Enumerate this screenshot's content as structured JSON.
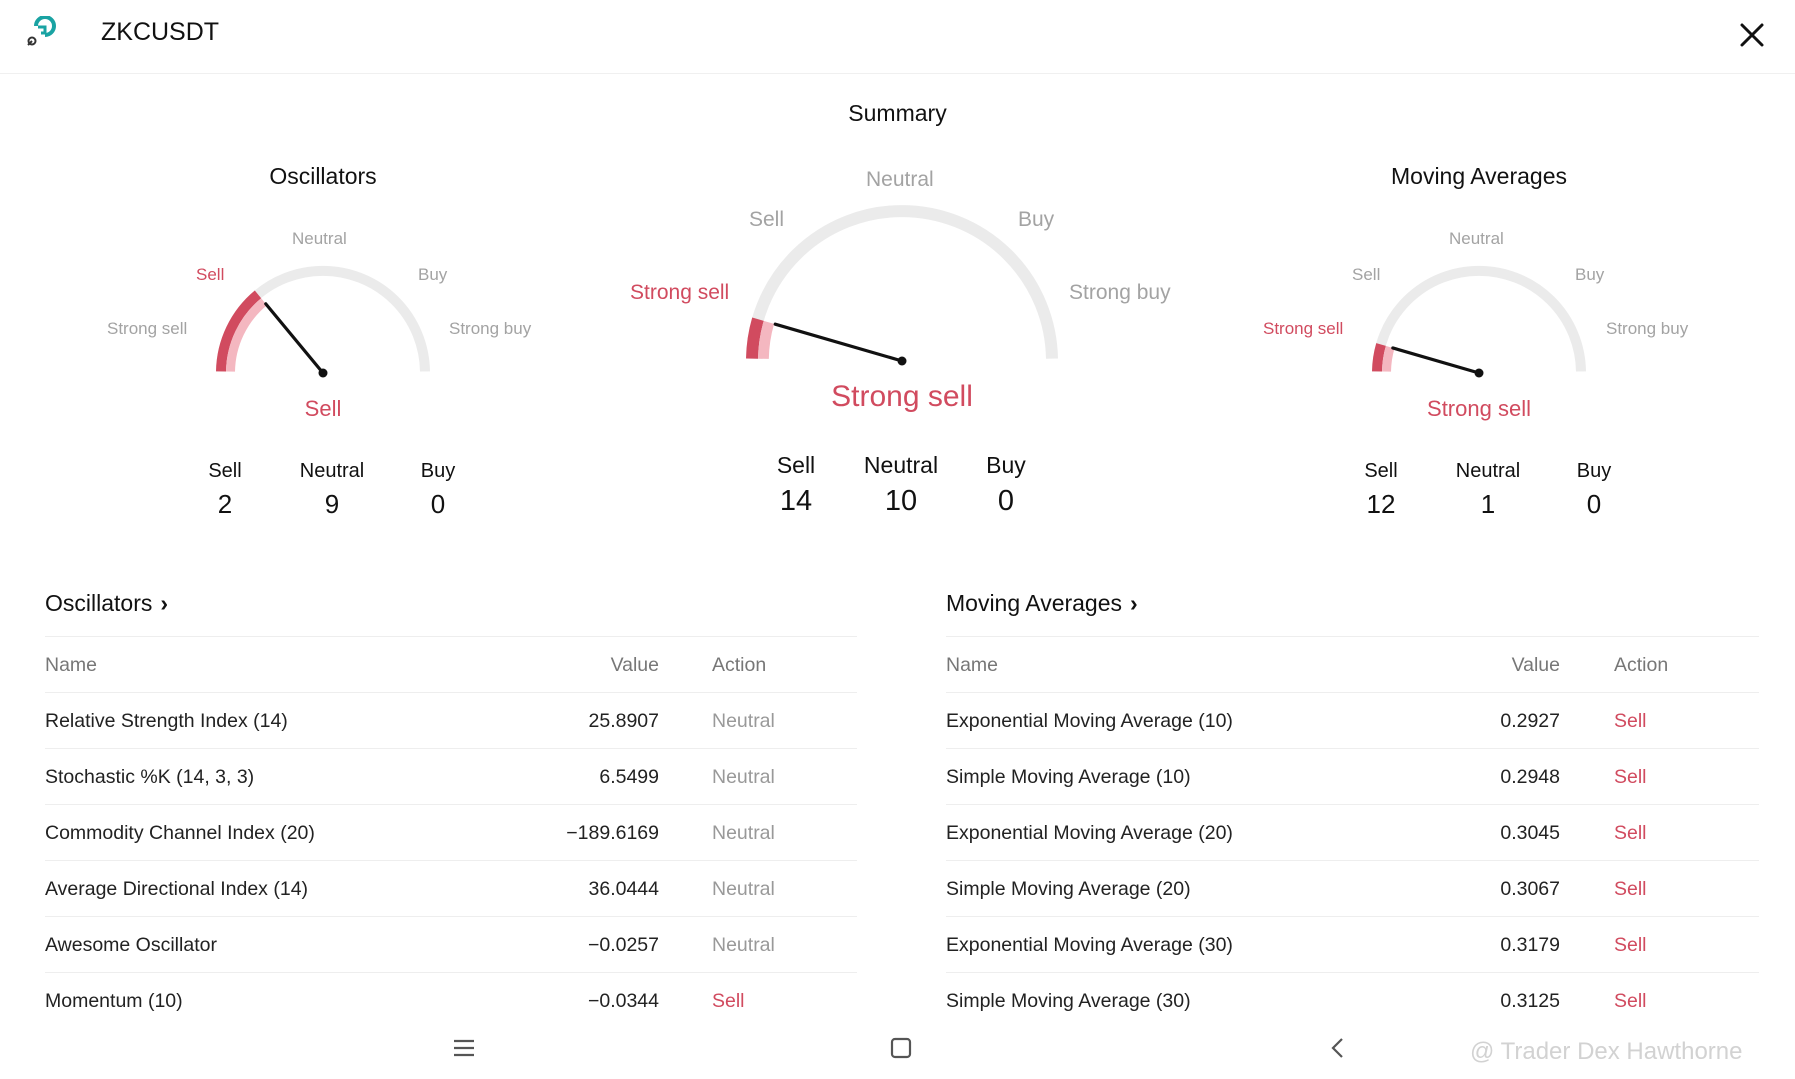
{
  "header": {
    "title": "ZKCUSDT",
    "logo_icon": "app-logo-icon",
    "close_icon": "close-icon"
  },
  "summary": {
    "title": "Summary",
    "gauge_labels": {
      "strong_sell": "Strong sell",
      "sell": "Sell",
      "neutral": "Neutral",
      "buy": "Buy",
      "strong_buy": "Strong buy"
    },
    "counts_labels": {
      "sell": "Sell",
      "neutral": "Neutral",
      "buy": "Buy"
    },
    "oscillators": {
      "title": "Oscillators",
      "result": "Sell",
      "active_zone": "sell",
      "needle_level": 0.28,
      "counts": {
        "sell": "2",
        "neutral": "9",
        "buy": "0"
      }
    },
    "overall": {
      "result": "Strong sell",
      "active_zone": "strong_sell",
      "needle_level": 0.09,
      "counts": {
        "sell": "14",
        "neutral": "10",
        "buy": "0"
      }
    },
    "moving_averages": {
      "title": "Moving Averages",
      "result": "Strong sell",
      "active_zone": "strong_sell",
      "needle_level": 0.09,
      "counts": {
        "sell": "12",
        "neutral": "1",
        "buy": "0"
      }
    }
  },
  "oscillators_table": {
    "title": "Oscillators",
    "chevron": "›",
    "columns": {
      "name": "Name",
      "value": "Value",
      "action": "Action"
    },
    "rows": [
      {
        "name": "Relative Strength Index (14)",
        "value": "25.8907",
        "action": "Neutral"
      },
      {
        "name": "Stochastic %K (14, 3, 3)",
        "value": "6.5499",
        "action": "Neutral"
      },
      {
        "name": "Commodity Channel Index (20)",
        "value": "−189.6169",
        "action": "Neutral"
      },
      {
        "name": "Average Directional Index (14)",
        "value": "36.0444",
        "action": "Neutral"
      },
      {
        "name": "Awesome Oscillator",
        "value": "−0.0257",
        "action": "Neutral"
      },
      {
        "name": "Momentum (10)",
        "value": "−0.0344",
        "action": "Sell"
      }
    ]
  },
  "moving_averages_table": {
    "title": "Moving Averages",
    "chevron": "›",
    "columns": {
      "name": "Name",
      "value": "Value",
      "action": "Action"
    },
    "rows": [
      {
        "name": "Exponential Moving Average (10)",
        "value": "0.2927",
        "action": "Sell"
      },
      {
        "name": "Simple Moving Average (10)",
        "value": "0.2948",
        "action": "Sell"
      },
      {
        "name": "Exponential Moving Average (20)",
        "value": "0.3045",
        "action": "Sell"
      },
      {
        "name": "Simple Moving Average (20)",
        "value": "0.3067",
        "action": "Sell"
      },
      {
        "name": "Exponential Moving Average (30)",
        "value": "0.3179",
        "action": "Sell"
      },
      {
        "name": "Simple Moving Average (30)",
        "value": "0.3125",
        "action": "Sell"
      }
    ]
  },
  "navbar": {
    "icons": [
      "menu-icon",
      "home-square-icon",
      "back-icon"
    ]
  },
  "watermark": "@ Trader Dex Hawthorne",
  "colors": {
    "sell": "#d14b5f",
    "sell_light": "#f4b7c0",
    "neutral_text": "#999999",
    "track": "#ebebeb"
  }
}
